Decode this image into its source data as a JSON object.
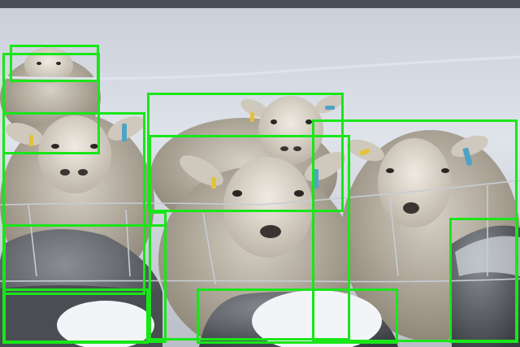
{
  "image": {
    "subject": "sheep-behind-frosty-wire-fence",
    "box_color": "#19e619",
    "palette": {
      "snow": "#dfe3ea",
      "wool": "#c9c3b8",
      "wool_shadow": "#8f8778",
      "face": "#e3ddd2",
      "stone": "#5b5f63",
      "frost": "#f2f4f8",
      "tag": "#4fa3c7",
      "tag_yellow": "#e3c23a"
    }
  },
  "detections": [
    {
      "label": "sheep"
    },
    {
      "label": "sheep"
    },
    {
      "label": "sheep"
    },
    {
      "label": "sheep"
    },
    {
      "label": "sheep"
    },
    {
      "label": "sheep"
    },
    {
      "label": "sheep"
    },
    {
      "label": "rock"
    },
    {
      "label": "rock"
    },
    {
      "label": "rock"
    },
    {
      "label": "rock"
    }
  ]
}
